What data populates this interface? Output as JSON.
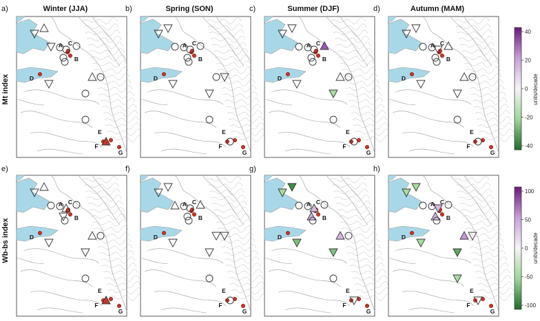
{
  "row_labels": [
    "Mt index",
    "Wb-bs index"
  ],
  "column_titles": [
    "Winter (JJA)",
    "Spring (SON)",
    "Summer (DJF)",
    "Autumn (MAM)"
  ],
  "panel_letters": [
    "a)",
    "b)",
    "c)",
    "d)",
    "e)",
    "f)",
    "g)",
    "h)"
  ],
  "station_labels": [
    "A",
    "B",
    "C",
    "D",
    "E",
    "F",
    "G"
  ],
  "colorbars": [
    {
      "ticks": [
        "40",
        "20",
        "0",
        "-20",
        "-40"
      ],
      "label": "units/decade",
      "min": -40,
      "max": 40
    },
    {
      "ticks": [
        "100",
        "50",
        "0",
        "-50",
        "-100"
      ],
      "label": "units/decade",
      "min": -100,
      "max": 100
    }
  ],
  "colors": {
    "sea": "#a8d8e8",
    "land": "#ffffff",
    "coast": "#9a9a9a",
    "station": "#c0392b",
    "pos_max": "#6a1a7a",
    "neg_max": "#1f6b2a"
  },
  "legend_symbols": {
    "triangle_up": "positive trend",
    "triangle_down": "negative trend",
    "circle": "no trend"
  }
}
